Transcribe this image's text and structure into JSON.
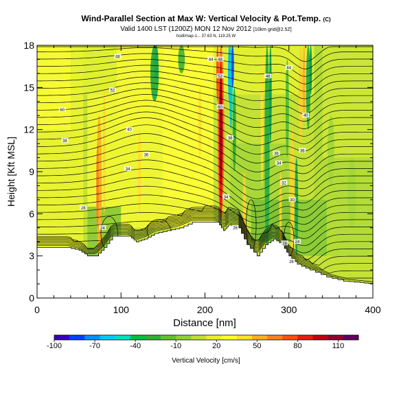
{
  "chart_data": {
    "type": "heatmap",
    "title": "Wind-Parallel Section at Max W: Vertical Velocity & Pot.Temp.",
    "title_mark": "(C)",
    "subtitle": "Valid 1400 LST (1200Z) MON 12 Nov 2012",
    "subtitle_note": "[10km grid@2.5Z]",
    "subtitle2": "hodl/map-1... 37.63 N, 119.25 W",
    "xlabel": "Distance [nm]",
    "ylabel": "Height [Kft MSL]",
    "xlim": [
      0,
      400
    ],
    "ylim": [
      0,
      18
    ],
    "x_ticks": [
      "0",
      "100",
      "200",
      "300",
      "400"
    ],
    "y_ticks": [
      "0",
      "3",
      "6",
      "9",
      "12",
      "15",
      "18"
    ],
    "colorbar": {
      "label": "Vertical Velocity [cm/s]",
      "ticks": [
        "-100",
        "-70",
        "-40",
        "-10",
        "20",
        "50",
        "80",
        "110"
      ],
      "range": [
        -100,
        125
      ],
      "colors": [
        "#3a00c0",
        "#0040ff",
        "#0090ff",
        "#00c8ff",
        "#00e0c0",
        "#00c040",
        "#30b030",
        "#60c030",
        "#90d030",
        "#c0e030",
        "#e8f030",
        "#ffff30",
        "#ffe030",
        "#ffb020",
        "#ff8020",
        "#ff5010",
        "#e02010",
        "#c00010",
        "#900030",
        "#600060"
      ]
    },
    "terrain": [
      [
        0,
        3.6
      ],
      [
        20,
        3.6
      ],
      [
        36,
        3.6
      ],
      [
        50,
        3.4
      ],
      [
        60,
        3.0
      ],
      [
        70,
        3.0
      ],
      [
        80,
        3.6
      ],
      [
        90,
        4.4
      ],
      [
        100,
        4.4
      ],
      [
        110,
        4.4
      ],
      [
        118,
        4.0
      ],
      [
        128,
        4.2
      ],
      [
        140,
        4.6
      ],
      [
        155,
        4.8
      ],
      [
        170,
        5.0
      ],
      [
        185,
        5.4
      ],
      [
        200,
        5.4
      ],
      [
        215,
        5.4
      ],
      [
        222,
        4.8
      ],
      [
        228,
        5.2
      ],
      [
        240,
        5.0
      ],
      [
        250,
        3.8
      ],
      [
        262,
        3.0
      ],
      [
        272,
        3.8
      ],
      [
        282,
        4.2
      ],
      [
        292,
        3.8
      ],
      [
        300,
        3.0
      ],
      [
        310,
        2.4
      ],
      [
        325,
        2.0
      ],
      [
        345,
        1.5
      ],
      [
        365,
        1.2
      ],
      [
        385,
        1.1
      ],
      [
        400,
        1.0
      ]
    ],
    "contour_labels": [
      {
        "text": "48",
        "x": 96,
        "y": 17.2
      },
      {
        "text": "44",
        "x": 207,
        "y": 17.0
      },
      {
        "text": "48",
        "x": 218,
        "y": 17.0
      },
      {
        "text": "52",
        "x": 218,
        "y": 15.8
      },
      {
        "text": "48",
        "x": 275,
        "y": 15.8
      },
      {
        "text": "44",
        "x": 300,
        "y": 16.4
      },
      {
        "text": "52",
        "x": 90,
        "y": 14.8
      },
      {
        "text": "60",
        "x": 30,
        "y": 13.4
      },
      {
        "text": "60",
        "x": 218,
        "y": 13.6
      },
      {
        "text": "40",
        "x": 320,
        "y": 13.0
      },
      {
        "text": "40",
        "x": 110,
        "y": 12.0
      },
      {
        "text": "38",
        "x": 230,
        "y": 11.4
      },
      {
        "text": "38",
        "x": 33,
        "y": 11.2
      },
      {
        "text": "36",
        "x": 130,
        "y": 10.2
      },
      {
        "text": "36",
        "x": 285,
        "y": 10.3
      },
      {
        "text": "36",
        "x": 316,
        "y": 10.5
      },
      {
        "text": "34",
        "x": 108,
        "y": 9.2
      },
      {
        "text": "34",
        "x": 288,
        "y": 9.6
      },
      {
        "text": "32",
        "x": 294,
        "y": 8.2
      },
      {
        "text": "34",
        "x": 225,
        "y": 7.2
      },
      {
        "text": "30",
        "x": 304,
        "y": 7.0
      },
      {
        "text": "28",
        "x": 55,
        "y": 6.4
      },
      {
        "text": "24",
        "x": 78,
        "y": 5.0
      },
      {
        "text": "26",
        "x": 236,
        "y": 5.0
      },
      {
        "text": "28",
        "x": 295,
        "y": 3.9
      },
      {
        "text": "24",
        "x": 310,
        "y": 4.0
      },
      {
        "text": "26",
        "x": 303,
        "y": 2.6
      }
    ]
  }
}
